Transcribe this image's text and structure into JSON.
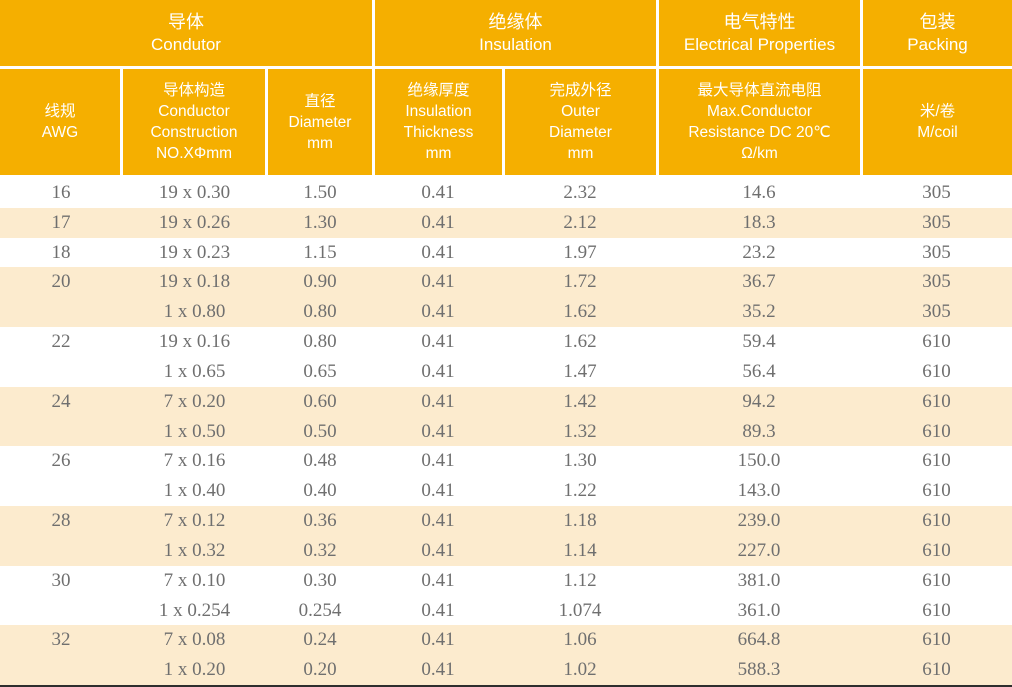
{
  "colors": {
    "header_orange": "#F5AF00",
    "row_cream": "#FCEBCE",
    "data_text": "#6F6F6F",
    "header_text": "#FFFFFF",
    "bottom_line": "#2E2E2E"
  },
  "table": {
    "groups": [
      {
        "key": "condutor",
        "zh": "导体",
        "en": "Condutor",
        "span": 3
      },
      {
        "key": "insulation",
        "zh": "绝缘体",
        "en": "Insulation",
        "span": 2
      },
      {
        "key": "electrical-properties",
        "zh": "电气特性",
        "en": "Electrical Properties",
        "span": 1
      },
      {
        "key": "packing",
        "zh": "包装",
        "en": "Packing",
        "span": 1
      }
    ],
    "columns": [
      {
        "key": "awg",
        "lines": [
          "线规",
          "AWG"
        ]
      },
      {
        "key": "construction",
        "lines": [
          "导体构造",
          "Conductor",
          "Construction",
          "NO.XΦmm"
        ]
      },
      {
        "key": "diameter",
        "lines": [
          "直径",
          "Diameter",
          "mm"
        ]
      },
      {
        "key": "thickness",
        "lines": [
          "绝缘厚度",
          "Insulation",
          "Thickness",
          "mm"
        ]
      },
      {
        "key": "outer",
        "lines": [
          "完成外径",
          "Outer",
          "Diameter",
          "mm"
        ]
      },
      {
        "key": "resistance",
        "lines": [
          "最大导体直流电阻",
          "Max.Conductor",
          "Resistance DC 20℃",
          "Ω/km"
        ]
      },
      {
        "key": "coil",
        "lines": [
          "米/卷",
          "M/coil"
        ]
      }
    ],
    "rows": [
      {
        "awg": "16",
        "construction": "19 x 0.30",
        "diameter": "1.50",
        "thickness": "0.41",
        "outer": "2.32",
        "resistance": "14.6",
        "coil": "305",
        "shaded": false
      },
      {
        "awg": "17",
        "construction": "19 x 0.26",
        "diameter": "1.30",
        "thickness": "0.41",
        "outer": "2.12",
        "resistance": "18.3",
        "coil": "305",
        "shaded": true
      },
      {
        "awg": "18",
        "construction": "19 x 0.23",
        "diameter": "1.15",
        "thickness": "0.41",
        "outer": "1.97",
        "resistance": "23.2",
        "coil": "305",
        "shaded": false
      },
      {
        "awg": "20",
        "construction": "19 x 0.18",
        "diameter": "0.90",
        "thickness": "0.41",
        "outer": "1.72",
        "resistance": "36.7",
        "coil": "305",
        "shaded": true
      },
      {
        "awg": "",
        "construction": "1 x 0.80",
        "diameter": "0.80",
        "thickness": "0.41",
        "outer": "1.62",
        "resistance": "35.2",
        "coil": "305",
        "shaded": true
      },
      {
        "awg": "22",
        "construction": "19 x 0.16",
        "diameter": "0.80",
        "thickness": "0.41",
        "outer": "1.62",
        "resistance": "59.4",
        "coil": "610",
        "shaded": false
      },
      {
        "awg": "",
        "construction": "1 x 0.65",
        "diameter": "0.65",
        "thickness": "0.41",
        "outer": "1.47",
        "resistance": "56.4",
        "coil": "610",
        "shaded": false
      },
      {
        "awg": "24",
        "construction": "7 x 0.20",
        "diameter": "0.60",
        "thickness": "0.41",
        "outer": "1.42",
        "resistance": "94.2",
        "coil": "610",
        "shaded": true
      },
      {
        "awg": "",
        "construction": "1 x 0.50",
        "diameter": "0.50",
        "thickness": "0.41",
        "outer": "1.32",
        "resistance": "89.3",
        "coil": "610",
        "shaded": true
      },
      {
        "awg": "26",
        "construction": "7 x 0.16",
        "diameter": "0.48",
        "thickness": "0.41",
        "outer": "1.30",
        "resistance": "150.0",
        "coil": "610",
        "shaded": false
      },
      {
        "awg": "",
        "construction": "1 x 0.40",
        "diameter": "0.40",
        "thickness": "0.41",
        "outer": "1.22",
        "resistance": "143.0",
        "coil": "610",
        "shaded": false
      },
      {
        "awg": "28",
        "construction": "7 x 0.12",
        "diameter": "0.36",
        "thickness": "0.41",
        "outer": "1.18",
        "resistance": "239.0",
        "coil": "610",
        "shaded": true
      },
      {
        "awg": "",
        "construction": "1 x 0.32",
        "diameter": "0.32",
        "thickness": "0.41",
        "outer": "1.14",
        "resistance": "227.0",
        "coil": "610",
        "shaded": true
      },
      {
        "awg": "30",
        "construction": "7 x 0.10",
        "diameter": "0.30",
        "thickness": "0.41",
        "outer": "1.12",
        "resistance": "381.0",
        "coil": "610",
        "shaded": false
      },
      {
        "awg": "",
        "construction": "1 x 0.254",
        "diameter": "0.254",
        "thickness": "0.41",
        "outer": "1.074",
        "resistance": "361.0",
        "coil": "610",
        "shaded": false
      },
      {
        "awg": "32",
        "construction": "7 x 0.08",
        "diameter": "0.24",
        "thickness": "0.41",
        "outer": "1.06",
        "resistance": "664.8",
        "coil": "610",
        "shaded": true
      },
      {
        "awg": "",
        "construction": "1 x 0.20",
        "diameter": "0.20",
        "thickness": "0.41",
        "outer": "1.02",
        "resistance": "588.3",
        "coil": "610",
        "shaded": true
      }
    ]
  }
}
